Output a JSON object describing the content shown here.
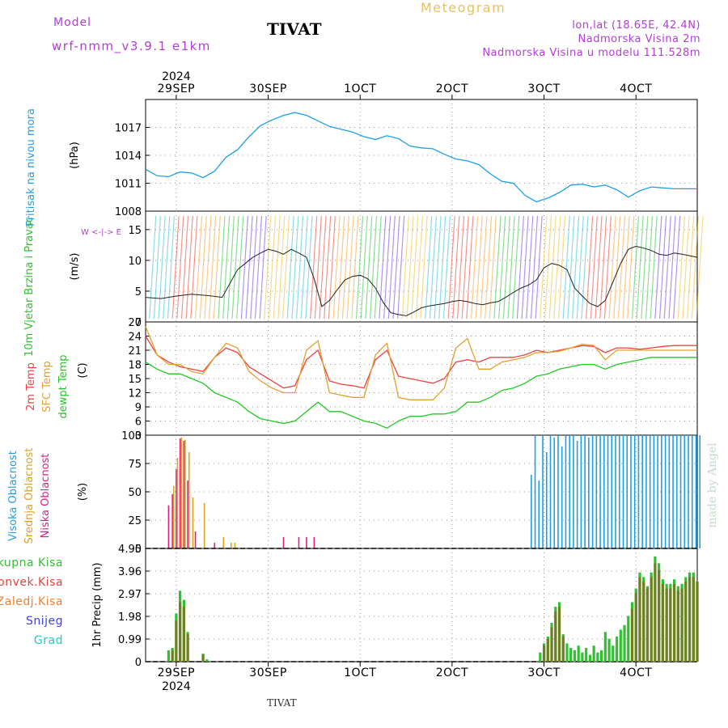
{
  "header": {
    "model_label": "Model",
    "model_name": "wrf-nmm_v3.9.1 e1km",
    "station": "TIVAT",
    "product": "Meteogram",
    "coords": "lon,lat (18.65E, 42.4N)",
    "elevation": "Nadmorska Visina 2m",
    "model_elevation": "Nadmorska Visina u modelu 111.528m",
    "watermark": "made by Angel",
    "footer_station": "TIVAT"
  },
  "colors": {
    "pressure": "#1ea0e6",
    "temp2m": "#f04040",
    "sfc_temp": "#e0a030",
    "dewpt": "#22c822",
    "high_cloud": "#20a0e0",
    "mid_cloud": "#e0a020",
    "low_cloud": "#e02080",
    "total_precip": "#30c030",
    "conv_precip": "#e84040",
    "frz_precip": "#f08030",
    "snow": "#4040e0",
    "hail": "#20c8c8",
    "title_purple": "#b040d0",
    "meteogram_orange": "#e8c060"
  },
  "chart_data": [
    {
      "type": "line",
      "panel": "pressure",
      "ylabel_colored": "Pritisak na nivou mora",
      "ylabel_unit": "(hPa)",
      "ylim": [
        1008,
        1020
      ],
      "yticks": [
        1008,
        1011,
        1014,
        1017
      ],
      "grid": true,
      "xlim": [
        0,
        144
      ],
      "xticks_top": [
        "29SEP",
        "30SEP",
        "1OCT",
        "2OCT",
        "3OCT",
        "4OCT"
      ],
      "year_label": "2024",
      "series": [
        {
          "name": "Pritisak na nivou mora",
          "x": [
            0,
            3,
            6,
            9,
            12,
            15,
            18,
            21,
            24,
            27,
            30,
            33,
            36,
            39,
            42,
            45,
            48,
            51,
            54,
            57,
            60,
            63,
            66,
            69,
            72,
            75,
            78,
            81,
            84,
            87,
            90,
            93,
            96,
            99,
            102,
            105,
            108,
            111,
            114,
            117,
            120,
            123,
            126,
            129,
            132,
            135,
            138,
            141,
            144
          ],
          "values": [
            1012.5,
            1011.8,
            1011.7,
            1012.2,
            1012.1,
            1011.6,
            1012.3,
            1013.8,
            1014.6,
            1016.0,
            1017.2,
            1017.8,
            1018.3,
            1018.6,
            1018.3,
            1017.7,
            1017.1,
            1016.8,
            1016.5,
            1016.0,
            1015.7,
            1016.1,
            1015.8,
            1015.0,
            1014.8,
            1014.7,
            1014.1,
            1013.6,
            1013.4,
            1013.0,
            1012.0,
            1011.2,
            1011.0,
            1009.7,
            1009.0,
            1009.4,
            1010.0,
            1010.8,
            1010.9,
            1010.6,
            1010.8,
            1010.3,
            1009.5,
            1010.2,
            1010.6,
            1010.5,
            1010.4,
            1010.4,
            1010.4
          ]
        }
      ]
    },
    {
      "type": "line",
      "panel": "wind",
      "ylabel_colored": "10m Vjetar Brzina i Pravac",
      "ylabel_unit": "(m/s)",
      "legend_compass": "W <-|-> E",
      "ylim": [
        0,
        18
      ],
      "yticks": [
        0,
        5,
        10,
        15
      ],
      "grid": true,
      "series": [
        {
          "name": "speed",
          "x": [
            0,
            4,
            8,
            12,
            16,
            20,
            24,
            28,
            30,
            32,
            34,
            36,
            38,
            40,
            42,
            44,
            46,
            48,
            50,
            52,
            54,
            56,
            58,
            60,
            62,
            64,
            66,
            68,
            70,
            72,
            74,
            76,
            78,
            80,
            82,
            84,
            86,
            88,
            90,
            92,
            94,
            96,
            98,
            100,
            102,
            104,
            106,
            108,
            110,
            112,
            114,
            116,
            118,
            120,
            122,
            124,
            126,
            128,
            130,
            132,
            134,
            136,
            138,
            140,
            144
          ],
          "values": [
            4,
            3.8,
            4.2,
            4.5,
            4.3,
            4.0,
            8.5,
            10.5,
            11.2,
            11.8,
            11.5,
            11.0,
            11.8,
            11.2,
            10.5,
            7.0,
            2.5,
            3.5,
            5.2,
            6.8,
            7.4,
            7.6,
            7.0,
            5.5,
            3.2,
            1.5,
            1.2,
            1.0,
            1.6,
            2.3,
            2.6,
            2.8,
            3.0,
            3.3,
            3.5,
            3.3,
            3.0,
            2.8,
            3.1,
            3.3,
            4.0,
            4.8,
            5.5,
            6.0,
            6.8,
            8.8,
            9.5,
            9.2,
            8.5,
            5.5,
            4.2,
            3.0,
            2.5,
            3.5,
            6.5,
            9.5,
            11.8,
            12.3,
            12.0,
            11.6,
            11.0,
            10.8,
            11.2,
            11.0,
            10.5
          ]
        }
      ]
    },
    {
      "type": "line",
      "panel": "temperature",
      "ylabels_colored": [
        "2m Temp",
        "SFC Temp",
        "dewpt Temp"
      ],
      "ylabel_unit": "(C)",
      "ylim": [
        3,
        27
      ],
      "yticks": [
        3,
        6,
        9,
        12,
        15,
        18,
        21,
        24,
        27
      ],
      "grid": true,
      "series": [
        {
          "name": "2m Temp",
          "x": [
            0,
            3,
            6,
            9,
            12,
            15,
            18,
            21,
            24,
            27,
            30,
            33,
            36,
            39,
            42,
            45,
            48,
            51,
            54,
            57,
            60,
            63,
            66,
            69,
            72,
            75,
            78,
            81,
            84,
            87,
            90,
            93,
            96,
            99,
            102,
            105,
            108,
            111,
            114,
            117,
            120,
            123,
            126,
            129,
            132,
            135,
            138,
            141,
            144
          ],
          "values": [
            24,
            20,
            18.5,
            17.5,
            17,
            16.5,
            19.5,
            21.5,
            20.5,
            17.5,
            16,
            14.5,
            13,
            13.5,
            19,
            21,
            14.5,
            13.8,
            13.5,
            13,
            19,
            21,
            15.5,
            15,
            14.5,
            14,
            15,
            18.5,
            19,
            18.5,
            19.5,
            19.5,
            19.5,
            20,
            21,
            20.5,
            21,
            21.5,
            22,
            21.8,
            20.5,
            21.5,
            21.5,
            21.2,
            21.5,
            21.8,
            22,
            22,
            22
          ]
        },
        {
          "name": "SFC Temp",
          "x": [
            0,
            3,
            6,
            9,
            12,
            15,
            18,
            21,
            24,
            27,
            30,
            33,
            36,
            39,
            42,
            45,
            48,
            51,
            54,
            57,
            60,
            63,
            66,
            69,
            72,
            75,
            78,
            81,
            84,
            87,
            90,
            93,
            96,
            99,
            102,
            105,
            108,
            111,
            114,
            117,
            120,
            123,
            126,
            129,
            132,
            135,
            138,
            141,
            144
          ],
          "values": [
            26,
            20,
            18,
            18,
            16.5,
            16,
            19.5,
            22.5,
            21.5,
            16.5,
            14.5,
            13,
            12,
            12,
            21,
            23,
            12,
            11.5,
            11,
            11,
            20,
            22.5,
            11,
            10.5,
            10.5,
            10.5,
            13,
            21.5,
            23.5,
            17,
            17,
            18.5,
            19,
            19.5,
            20.5,
            20.5,
            20.8,
            21.5,
            22.3,
            22,
            19,
            21,
            21,
            21,
            21,
            21,
            21,
            21,
            21
          ]
        },
        {
          "name": "dewpt Temp",
          "x": [
            0,
            3,
            6,
            9,
            12,
            15,
            18,
            21,
            24,
            27,
            30,
            33,
            36,
            39,
            42,
            45,
            48,
            51,
            54,
            57,
            60,
            63,
            66,
            69,
            72,
            75,
            78,
            81,
            84,
            87,
            90,
            93,
            96,
            99,
            102,
            105,
            108,
            111,
            114,
            117,
            120,
            123,
            126,
            129,
            132,
            135,
            138,
            141,
            144
          ],
          "values": [
            18.5,
            17,
            16,
            16,
            15,
            14,
            12,
            11,
            10,
            8,
            6.5,
            6,
            5.5,
            6,
            8,
            10,
            8,
            8,
            7,
            6,
            5.5,
            4.5,
            6,
            7,
            7,
            7.5,
            7.5,
            8,
            10,
            10,
            11,
            12.5,
            13,
            14,
            15.5,
            16,
            17,
            17.5,
            18,
            18,
            17,
            18,
            18.5,
            19,
            19.5,
            19.5,
            19.5,
            19.5,
            19.5
          ]
        }
      ]
    },
    {
      "type": "bar",
      "panel": "clouds",
      "ylabels_colored": [
        "Visoka Oblacnost",
        "Srednja Oblacnost",
        "Niska Oblacnost"
      ],
      "ylabel_unit": "(%)",
      "ylim": [
        0,
        100
      ],
      "yticks": [
        0,
        25,
        50,
        75,
        100
      ],
      "grid": true,
      "series": [
        {
          "name": "Niska Oblacnost",
          "x": [
            6,
            7,
            8,
            9,
            10,
            11,
            13,
            18,
            36,
            40,
            42,
            44
          ],
          "values": [
            38,
            48,
            70,
            97,
            95,
            60,
            15,
            5,
            10,
            10,
            10,
            10
          ]
        },
        {
          "name": "Srednja Oblacnost",
          "x": [
            7,
            8,
            9,
            10,
            11,
            12,
            15,
            20,
            22,
            23
          ],
          "values": [
            55,
            80,
            98,
            96,
            85,
            45,
            40,
            10,
            5,
            5
          ]
        },
        {
          "name": "Visoka Oblacnost",
          "x": [
            100,
            101,
            102,
            103,
            104,
            105,
            106,
            107,
            108,
            109,
            110,
            111,
            112,
            113,
            114,
            115,
            116,
            117,
            118,
            119,
            120,
            121,
            122,
            123,
            124,
            125,
            126,
            127,
            128,
            129,
            130,
            131,
            132,
            133,
            134,
            135,
            136,
            137,
            138,
            139,
            140,
            141,
            142,
            143,
            144
          ],
          "values": [
            65,
            100,
            60,
            100,
            85,
            100,
            98,
            100,
            90,
            100,
            100,
            100,
            95,
            100,
            100,
            98,
            100,
            100,
            100,
            100,
            100,
            100,
            100,
            100,
            100,
            100,
            100,
            100,
            100,
            100,
            100,
            100,
            100,
            100,
            100,
            100,
            100,
            100,
            100,
            100,
            100,
            100,
            100,
            100,
            100
          ]
        }
      ]
    },
    {
      "type": "bar",
      "panel": "precip",
      "ylabels_colored": [
        "Ukupna Kisa",
        "Konvek.Kisa",
        "Zaledj.Kisa",
        "Snijeg",
        "Grad"
      ],
      "ylabel_unit": "1hr Precip (mm)",
      "ylim": [
        0,
        4.95
      ],
      "yticks": [
        0,
        0.99,
        1.98,
        2.97,
        3.96,
        4.95
      ],
      "grid": true,
      "xticks_bottom": [
        "29SEP",
        "30SEP",
        "1OCT",
        "2OCT",
        "3OCT",
        "4OCT"
      ],
      "year_label": "2024",
      "series": [
        {
          "name": "Ukupna Kisa",
          "x": [
            6,
            7,
            8,
            9,
            10,
            11,
            15,
            16,
            103,
            104,
            105,
            106,
            107,
            108,
            109,
            110,
            111,
            112,
            113,
            114,
            115,
            116,
            117,
            118,
            119,
            120,
            121,
            122,
            123,
            124,
            125,
            126,
            127,
            128,
            129,
            130,
            131,
            132,
            133,
            134,
            135,
            136,
            137,
            138,
            139,
            140,
            141,
            142,
            143,
            144
          ],
          "values": [
            0.5,
            0.6,
            2.1,
            3.1,
            2.7,
            1.3,
            0.35,
            0.1,
            0.4,
            0.8,
            1.1,
            1.7,
            2.4,
            2.6,
            1.2,
            0.8,
            0.6,
            0.5,
            0.7,
            0.4,
            0.6,
            0.3,
            0.7,
            0.4,
            0.5,
            1.3,
            1.0,
            0.7,
            1.1,
            1.4,
            1.6,
            2.0,
            2.6,
            3.2,
            3.9,
            3.7,
            3.3,
            3.9,
            4.6,
            4.3,
            3.6,
            3.4,
            3.4,
            3.6,
            3.3,
            3.4,
            3.7,
            3.9,
            3.9,
            3.5
          ]
        },
        {
          "name": "Konvek.Kisa",
          "x": [
            7,
            8,
            9,
            10,
            11,
            15,
            104,
            105,
            106,
            107,
            108,
            109,
            127,
            128,
            129,
            130,
            131,
            132,
            133,
            134,
            135,
            136,
            137,
            138,
            139,
            140,
            141,
            142,
            143,
            144
          ],
          "values": [
            0.5,
            1.8,
            2.6,
            2.4,
            1.2,
            0.3,
            0.7,
            1.0,
            1.5,
            2.2,
            2.4,
            1.1,
            2.3,
            3.0,
            3.7,
            3.5,
            3.2,
            3.7,
            4.3,
            4.0,
            3.4,
            3.2,
            3.2,
            3.4,
            3.1,
            3.2,
            3.5,
            3.7,
            3.7,
            3.5
          ]
        }
      ]
    }
  ]
}
